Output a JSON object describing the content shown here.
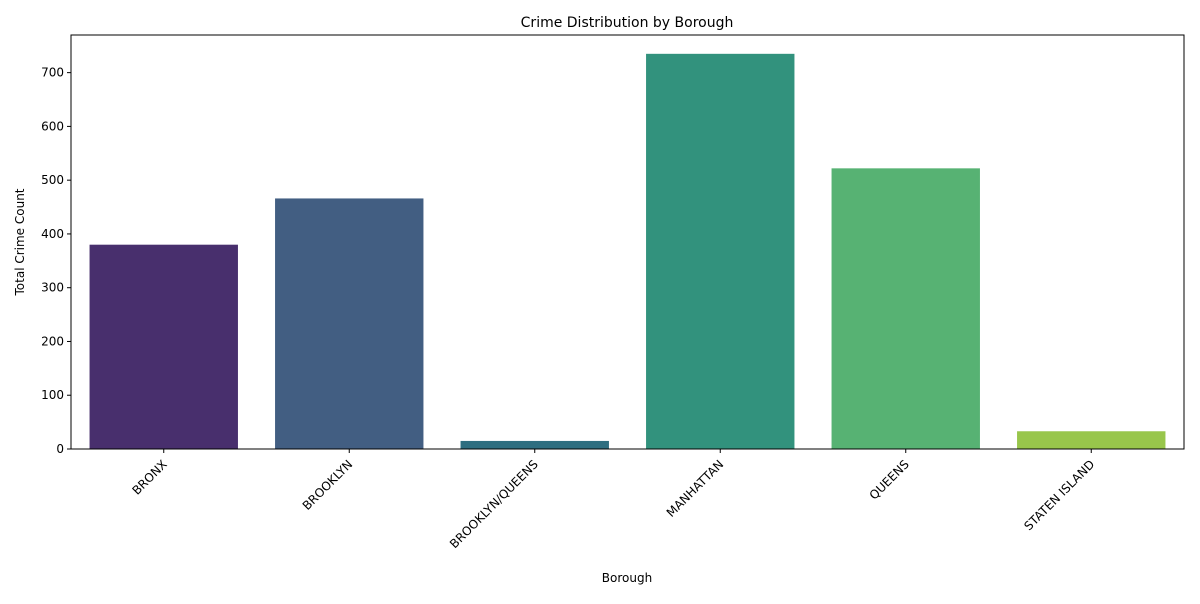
{
  "chart_data": {
    "type": "bar",
    "title": "Crime Distribution by Borough",
    "xlabel": "Borough",
    "ylabel": "Total Crime Count",
    "categories": [
      "BRONX",
      "BROOKLYN",
      "BROOKLYN/QUEENS",
      "MANHATTAN",
      "QUEENS",
      "STATEN ISLAND"
    ],
    "values": [
      380,
      466,
      15,
      735,
      522,
      33
    ],
    "colors": [
      "#482f6d",
      "#425e82",
      "#2e6e80",
      "#32927d",
      "#57b273",
      "#98c64b"
    ],
    "ylim": [
      0,
      770
    ],
    "yticks": [
      0,
      100,
      200,
      300,
      400,
      500,
      600,
      700
    ],
    "grid": false,
    "legend": "none"
  }
}
